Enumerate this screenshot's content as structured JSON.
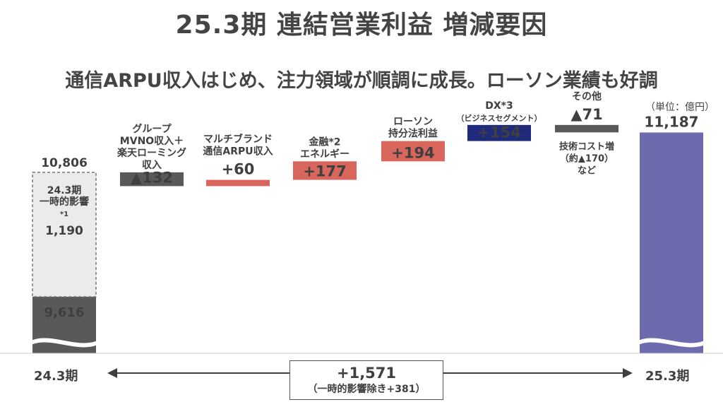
{
  "header": {
    "title": "25.3期 連結営業利益 増減要因",
    "subtitle": "通信ARPU収入はじめ、注力領域が順調に成長。ローソン業績も好調",
    "unit": "（単位：億円）"
  },
  "chart_data": {
    "type": "bar",
    "title": "25.3期 連結営業利益 増減要因",
    "unit": "億円",
    "start": {
      "label": "24.3期",
      "total": 10806,
      "base_value": 9616,
      "one_time": {
        "label_lines": [
          "24.3期",
          "一時的影響",
          "*1"
        ],
        "value": 1190,
        "value_label": "1,190"
      },
      "total_label": "10,806",
      "base_label": "9,616"
    },
    "steps": [
      {
        "label_lines": [
          "グループ",
          "MVNO収入＋",
          "楽天ローミング",
          "収入"
        ],
        "value": -132,
        "value_label": "▲132",
        "color": "#595959"
      },
      {
        "label_lines": [
          "マルチブランド",
          "通信ARPU収入"
        ],
        "value": 60,
        "value_label": "+60",
        "color": "#d9665c"
      },
      {
        "label_lines": [
          "金融*2",
          "エネルギー"
        ],
        "value": 177,
        "value_label": "+177",
        "color": "#d9665c"
      },
      {
        "label_lines": [
          "ローソン",
          "持分法利益"
        ],
        "value": 194,
        "value_label": "+194",
        "color": "#d9665c"
      },
      {
        "label_lines": [
          "DX*3",
          "（ビジネスセグメント）"
        ],
        "value": 154,
        "value_label": "+154",
        "color": "#1f2a7a"
      },
      {
        "label_lines": [
          "その他"
        ],
        "value": -71,
        "value_label": "▲71",
        "color": "#595959",
        "note_lines": [
          "技術コスト増",
          "（約▲170）",
          "など"
        ]
      }
    ],
    "end": {
      "label": "25.3期",
      "value": 11187,
      "value_label": "11,187",
      "color": "#6d6aae"
    },
    "change": {
      "value": 1571,
      "value_label": "+1,571",
      "note": "（一時的影響除き+381）"
    },
    "colors": {
      "increase": "#d9665c",
      "decrease": "#595959",
      "dx": "#1f2a7a",
      "end": "#6d6aae",
      "base": "#595959",
      "one_time": "#ebebeb"
    }
  }
}
